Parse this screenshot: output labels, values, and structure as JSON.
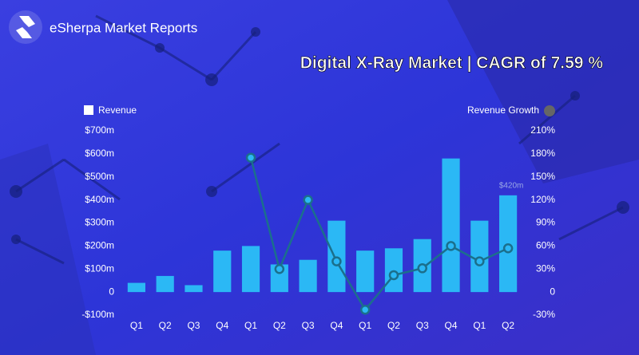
{
  "brand": "eSherpa Market Reports",
  "chart_data": {
    "type": "bar",
    "title": "Digital X-Ray Market | CAGR of 7.59 %",
    "categories": [
      "Q1",
      "Q2",
      "Q3",
      "Q4",
      "Q1",
      "Q2",
      "Q3",
      "Q4",
      "Q1",
      "Q2",
      "Q3",
      "Q4",
      "Q1",
      "Q2"
    ],
    "series": [
      {
        "name": "Revenue",
        "type": "bar",
        "color": "#2bb8f5",
        "values": [
          40,
          70,
          30,
          180,
          200,
          120,
          140,
          310,
          180,
          190,
          230,
          580,
          310,
          420
        ],
        "value_labels": [
          null,
          null,
          null,
          null,
          null,
          null,
          null,
          null,
          null,
          null,
          null,
          null,
          null,
          "$420m"
        ]
      },
      {
        "name": "Revenue Growth",
        "type": "line",
        "axis": "y2",
        "color": "#1b6f8c",
        "values": [
          null,
          null,
          null,
          null,
          175,
          30,
          120,
          40,
          -23,
          22,
          31,
          60,
          40,
          57
        ]
      }
    ],
    "ylim": [
      -100,
      700
    ],
    "yticks": [
      {
        "value": -100,
        "label": "-$100m"
      },
      0,
      {
        "value": 100,
        "label": "$100m"
      },
      {
        "value": 200,
        "label": "$200m"
      },
      {
        "value": 300,
        "label": "$300m"
      },
      {
        "value": 400,
        "label": "$400m"
      },
      {
        "value": 500,
        "label": "$500m"
      },
      {
        "value": 600,
        "label": "$600m"
      },
      {
        "value": 700,
        "label": "$700m"
      }
    ],
    "y2lim": [
      -30,
      210
    ],
    "y2ticks": [
      {
        "value": -30,
        "label": "-30%"
      },
      0,
      {
        "value": 30,
        "label": "30%"
      },
      {
        "value": 60,
        "label": "60%"
      },
      {
        "value": 90,
        "label": "90%"
      },
      {
        "value": 120,
        "label": "120%"
      },
      {
        "value": 150,
        "label": "150%"
      },
      {
        "value": 180,
        "label": "180%"
      },
      {
        "value": 210,
        "label": "210%"
      }
    ],
    "grid": false
  }
}
